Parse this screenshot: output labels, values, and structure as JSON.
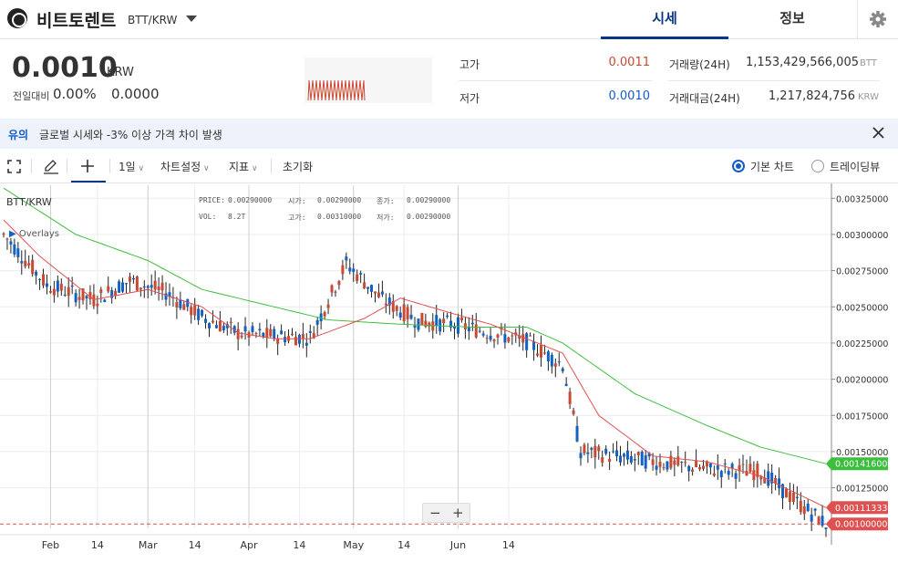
{
  "header": {
    "coin_name": "비트토렌트",
    "pair": "BTT/KRW",
    "tabs": [
      "시세",
      "정보"
    ]
  },
  "price": {
    "current": "0.0010",
    "unit": "KRW",
    "change_label": "전일대비",
    "change_pct": "0.00%",
    "change_val": "0.0000"
  },
  "stats": {
    "high_label": "고가",
    "high_value": "0.0011",
    "low_label": "저가",
    "low_value": "0.0010",
    "volume_label": "거래량(24H)",
    "volume_value": "1,153,429,566,005",
    "volume_unit": "BTT",
    "amount_label": "거래대금(24H)",
    "amount_value": "1,217,824,756",
    "amount_unit": "KRW"
  },
  "notice": {
    "tag": "유의",
    "text": "글로벌 시세와 -3% 이상 가격 차이 발생"
  },
  "toolbar": {
    "interval": "1일",
    "chart_settings": "차트설정",
    "indicators": "지표",
    "reset": "초기화",
    "basic_chart": "기본 차트",
    "tradingview": "트레이딩뷰"
  },
  "legend": {
    "symbol": "BTT/KRW",
    "overlays": "Overlays",
    "price_label": "PRICE:",
    "price_value": "0.00290000",
    "open_label": "시가:",
    "open_value": "0.00290000",
    "close_label": "종가:",
    "close_value": "0.00290000",
    "vol_label": "VOL:",
    "vol_value": "8.2T",
    "high_label": "고가:",
    "high_value": "0.00310000",
    "low_label": "저가:",
    "low_value": "0.00290000"
  },
  "colors": {
    "up": "#c84a31",
    "down": "#1261c4",
    "ma_short": "#e05050",
    "ma_long": "#3cbf3c",
    "accent": "#093687"
  },
  "chart_data": {
    "type": "candlestick",
    "yticks": [
      "0.00325000",
      "0.00300000",
      "0.00275000",
      "0.00250000",
      "0.00225000",
      "0.00200000",
      "0.00175000",
      "0.00150000",
      "0.00125000"
    ],
    "ytick_values": [
      0.00325,
      0.003,
      0.00275,
      0.0025,
      0.00225,
      0.002,
      0.00175,
      0.0015,
      0.00125
    ],
    "xticks": [
      "Feb",
      "14",
      "Mar",
      "14",
      "Apr",
      "14",
      "May",
      "14",
      "Jun",
      "14"
    ],
    "ylim": [
      0.00097,
      0.00334
    ],
    "markers": [
      {
        "label": "0.00141600",
        "value": 0.001416,
        "color": "#3cbf3c"
      },
      {
        "label": "0.00111333",
        "value": 0.00111333,
        "color": "#e05050"
      },
      {
        "label": "0.00100000",
        "value": 0.001,
        "color": "#e05050"
      }
    ],
    "series_shape": [
      [
        0,
        0.003
      ],
      [
        12,
        0.00265
      ],
      [
        25,
        0.00255
      ],
      [
        35,
        0.00268
      ],
      [
        45,
        0.0026
      ],
      [
        55,
        0.00243
      ],
      [
        65,
        0.00232
      ],
      [
        75,
        0.0023
      ],
      [
        85,
        0.00229
      ],
      [
        95,
        0.0028
      ],
      [
        105,
        0.00255
      ],
      [
        115,
        0.0024
      ],
      [
        125,
        0.00238
      ],
      [
        135,
        0.00232
      ],
      [
        145,
        0.00226
      ],
      [
        155,
        0.0021
      ],
      [
        160,
        0.0015
      ],
      [
        175,
        0.00145
      ],
      [
        195,
        0.00138
      ],
      [
        210,
        0.00136
      ],
      [
        220,
        0.00115
      ],
      [
        228,
        0.001
      ]
    ],
    "ma_long_shape": [
      [
        0,
        0.00332
      ],
      [
        20,
        0.003
      ],
      [
        40,
        0.00282
      ],
      [
        55,
        0.00262
      ],
      [
        70,
        0.00253
      ],
      [
        90,
        0.00241
      ],
      [
        110,
        0.00238
      ],
      [
        130,
        0.00236
      ],
      [
        145,
        0.00236
      ],
      [
        155,
        0.00225
      ],
      [
        175,
        0.0019
      ],
      [
        195,
        0.00168
      ],
      [
        210,
        0.00153
      ],
      [
        228,
        0.001416
      ]
    ],
    "ma_short_shape": [
      [
        0,
        0.0031
      ],
      [
        10,
        0.00285
      ],
      [
        25,
        0.00255
      ],
      [
        40,
        0.00262
      ],
      [
        55,
        0.0025
      ],
      [
        65,
        0.00232
      ],
      [
        75,
        0.00228
      ],
      [
        85,
        0.00228
      ],
      [
        100,
        0.00242
      ],
      [
        110,
        0.00256
      ],
      [
        125,
        0.00245
      ],
      [
        135,
        0.00238
      ],
      [
        145,
        0.00228
      ],
      [
        155,
        0.00218
      ],
      [
        165,
        0.00175
      ],
      [
        180,
        0.00147
      ],
      [
        195,
        0.00143
      ],
      [
        210,
        0.00133
      ],
      [
        228,
        0.00111333
      ]
    ]
  }
}
